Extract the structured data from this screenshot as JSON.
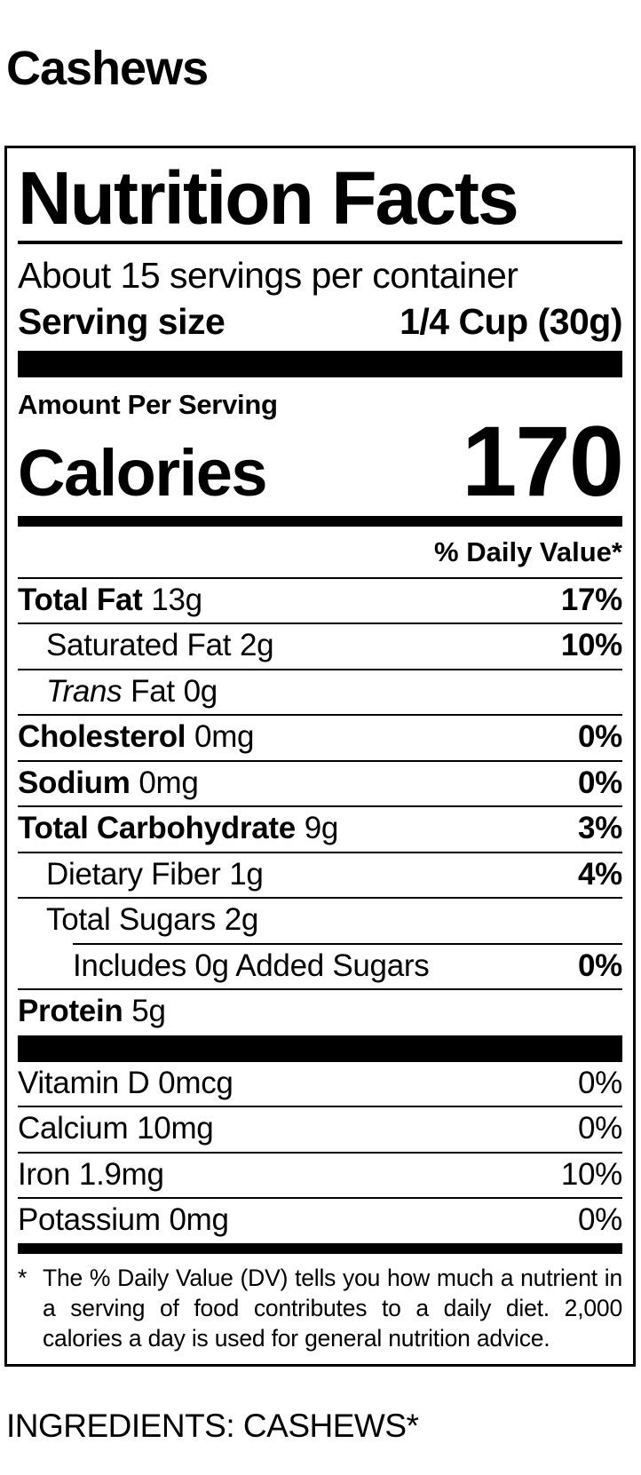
{
  "colors": {
    "ink": "#000000",
    "paper": "#ffffff"
  },
  "product": {
    "title": "Cashews"
  },
  "label": {
    "heading": "Nutrition Facts",
    "servings_per_container": "About 15 servings per container",
    "serving_size": {
      "label": "Serving size",
      "value": "1/4 Cup (30g)"
    },
    "amount_per_serving": "Amount Per Serving",
    "calories": {
      "label": "Calories",
      "value": "170"
    },
    "daily_value_header": "% Daily Value*",
    "rows": [
      {
        "name": "Total Fat",
        "amount": "13g",
        "dv": "17%"
      },
      {
        "name": "Saturated Fat",
        "amount": "2g",
        "dv": "10%"
      },
      {
        "name_italic": "Trans",
        "name": "Fat",
        "amount": "0g",
        "dv": ""
      },
      {
        "name": "Cholesterol",
        "amount": "0mg",
        "dv": "0%"
      },
      {
        "name": "Sodium",
        "amount": "0mg",
        "dv": "0%"
      },
      {
        "name": "Total Carbohydrate",
        "amount": "9g",
        "dv": "3%"
      },
      {
        "name": "Dietary Fiber",
        "amount": "1g",
        "dv": "4%"
      },
      {
        "name": "Total Sugars",
        "amount": "2g",
        "dv": ""
      },
      {
        "name": "Includes 0g Added Sugars",
        "amount": "",
        "dv": "0%"
      },
      {
        "name": "Protein",
        "amount": "5g",
        "dv": ""
      }
    ],
    "vitamins": [
      {
        "name": "Vitamin D",
        "amount": "0mcg",
        "dv": "0%"
      },
      {
        "name": "Calcium",
        "amount": "10mg",
        "dv": "0%"
      },
      {
        "name": "Iron",
        "amount": "1.9mg",
        "dv": "10%"
      },
      {
        "name": "Potassium",
        "amount": "0mg",
        "dv": "0%"
      }
    ],
    "footnote": {
      "marker": "*",
      "text": "The % Daily Value (DV) tells you how much a nutrient in a serving of food contributes to a daily diet. 2,000 calories a day is used for general nutrition advice."
    }
  },
  "ingredients": {
    "text": "INGREDIENTS: CASHEWS*"
  }
}
